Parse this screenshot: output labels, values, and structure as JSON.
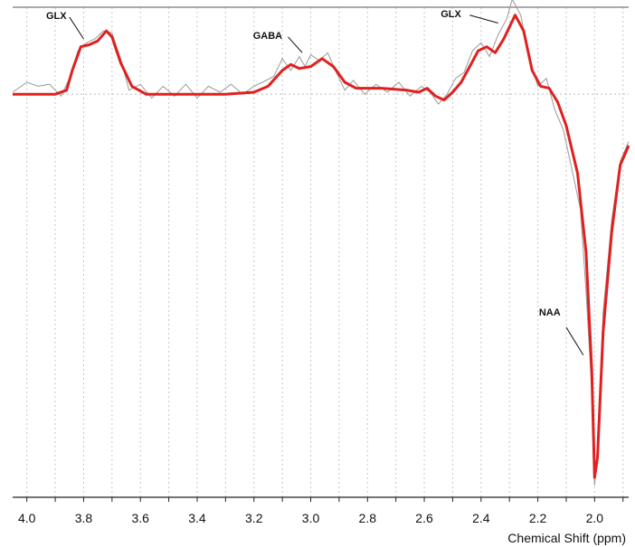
{
  "chart_data": {
    "type": "line",
    "title": "",
    "xlabel": "Chemical Shift (ppm)",
    "ylabel": "",
    "x_reversed": true,
    "xlim": [
      4.05,
      1.88
    ],
    "ylim": [
      -10.2,
      2.2
    ],
    "ticks": [
      4.0,
      3.8,
      3.6,
      3.4,
      3.2,
      3.0,
      2.8,
      2.6,
      2.4,
      2.2,
      2.0
    ],
    "tick_labels": [
      "4.0",
      "3.8",
      "3.6",
      "3.4",
      "3.2",
      "3.0",
      "2.8",
      "2.6",
      "2.4",
      "2.2",
      "2.0"
    ],
    "grid": true,
    "series": [
      {
        "role": "fit",
        "color": "#e02020",
        "points": [
          [
            4.05,
            0.0
          ],
          [
            3.9,
            0.0
          ],
          [
            3.86,
            0.1
          ],
          [
            3.84,
            0.6
          ],
          [
            3.81,
            1.2
          ],
          [
            3.78,
            1.25
          ],
          [
            3.75,
            1.35
          ],
          [
            3.72,
            1.6
          ],
          [
            3.7,
            1.45
          ],
          [
            3.67,
            0.8
          ],
          [
            3.63,
            0.2
          ],
          [
            3.58,
            0.0
          ],
          [
            3.45,
            0.0
          ],
          [
            3.3,
            0.0
          ],
          [
            3.2,
            0.05
          ],
          [
            3.15,
            0.2
          ],
          [
            3.1,
            0.6
          ],
          [
            3.07,
            0.75
          ],
          [
            3.04,
            0.65
          ],
          [
            3.0,
            0.7
          ],
          [
            2.96,
            0.9
          ],
          [
            2.92,
            0.7
          ],
          [
            2.88,
            0.3
          ],
          [
            2.84,
            0.15
          ],
          [
            2.75,
            0.15
          ],
          [
            2.66,
            0.1
          ],
          [
            2.62,
            0.05
          ],
          [
            2.59,
            0.15
          ],
          [
            2.56,
            -0.05
          ],
          [
            2.53,
            -0.15
          ],
          [
            2.5,
            0.05
          ],
          [
            2.47,
            0.3
          ],
          [
            2.44,
            0.7
          ],
          [
            2.41,
            1.1
          ],
          [
            2.38,
            1.2
          ],
          [
            2.35,
            1.05
          ],
          [
            2.32,
            1.4
          ],
          [
            2.28,
            2.0
          ],
          [
            2.25,
            1.6
          ],
          [
            2.22,
            0.6
          ],
          [
            2.19,
            0.2
          ],
          [
            2.16,
            0.15
          ],
          [
            2.13,
            -0.2
          ],
          [
            2.1,
            -0.8
          ],
          [
            2.06,
            -2.0
          ],
          [
            2.03,
            -4.0
          ],
          [
            2.01,
            -7.0
          ],
          [
            2.0,
            -9.7
          ],
          [
            1.99,
            -9.2
          ],
          [
            1.97,
            -6.0
          ],
          [
            1.94,
            -3.5
          ],
          [
            1.91,
            -1.8
          ],
          [
            1.88,
            -1.3
          ]
        ]
      },
      {
        "role": "raw",
        "color": "#999999",
        "points": [
          [
            4.05,
            0.05
          ],
          [
            4.0,
            0.3
          ],
          [
            3.96,
            0.2
          ],
          [
            3.92,
            0.25
          ],
          [
            3.88,
            -0.05
          ],
          [
            3.85,
            0.4
          ],
          [
            3.82,
            1.1
          ],
          [
            3.79,
            1.3
          ],
          [
            3.76,
            1.4
          ],
          [
            3.73,
            1.6
          ],
          [
            3.7,
            1.55
          ],
          [
            3.67,
            0.9
          ],
          [
            3.64,
            0.1
          ],
          [
            3.6,
            0.25
          ],
          [
            3.56,
            -0.1
          ],
          [
            3.52,
            0.2
          ],
          [
            3.48,
            -0.05
          ],
          [
            3.44,
            0.25
          ],
          [
            3.4,
            -0.1
          ],
          [
            3.36,
            0.2
          ],
          [
            3.32,
            0.05
          ],
          [
            3.28,
            0.25
          ],
          [
            3.24,
            0.0
          ],
          [
            3.2,
            0.2
          ],
          [
            3.17,
            0.3
          ],
          [
            3.13,
            0.45
          ],
          [
            3.1,
            0.9
          ],
          [
            3.07,
            0.6
          ],
          [
            3.04,
            0.95
          ],
          [
            3.02,
            0.7
          ],
          [
            3.0,
            1.0
          ],
          [
            2.97,
            0.85
          ],
          [
            2.94,
            1.05
          ],
          [
            2.91,
            0.55
          ],
          [
            2.88,
            0.1
          ],
          [
            2.85,
            0.35
          ],
          [
            2.81,
            0.0
          ],
          [
            2.77,
            0.25
          ],
          [
            2.73,
            0.05
          ],
          [
            2.69,
            0.3
          ],
          [
            2.65,
            -0.05
          ],
          [
            2.61,
            0.2
          ],
          [
            2.58,
            0.05
          ],
          [
            2.55,
            -0.25
          ],
          [
            2.52,
            0.0
          ],
          [
            2.49,
            0.4
          ],
          [
            2.46,
            0.55
          ],
          [
            2.43,
            1.1
          ],
          [
            2.4,
            1.3
          ],
          [
            2.37,
            0.95
          ],
          [
            2.34,
            1.5
          ],
          [
            2.31,
            1.9
          ],
          [
            2.29,
            2.4
          ],
          [
            2.26,
            2.0
          ],
          [
            2.23,
            0.9
          ],
          [
            2.2,
            0.2
          ],
          [
            2.17,
            0.4
          ],
          [
            2.14,
            -0.4
          ],
          [
            2.11,
            -0.9
          ],
          [
            2.08,
            -1.9
          ],
          [
            2.05,
            -2.9
          ],
          [
            2.03,
            -5.0
          ],
          [
            2.01,
            -7.5
          ],
          [
            2.0,
            -9.9
          ],
          [
            1.99,
            -9.0
          ],
          [
            1.97,
            -5.5
          ],
          [
            1.94,
            -3.2
          ],
          [
            1.91,
            -1.7
          ],
          [
            1.88,
            -1.2
          ]
        ]
      }
    ],
    "annotations": [
      {
        "text": "GLX",
        "x": 3.86,
        "y": 1.9,
        "lx0": 3.85,
        "ly0": 1.95,
        "lx1": 3.8,
        "ly1": 1.4
      },
      {
        "text": "GABA",
        "x": 3.1,
        "y": 1.4,
        "lx0": 3.08,
        "ly0": 1.45,
        "lx1": 3.03,
        "ly1": 1.05
      },
      {
        "text": "GLX",
        "x": 2.47,
        "y": 1.95,
        "lx0": 2.44,
        "ly0": 2.0,
        "lx1": 2.34,
        "ly1": 1.8
      },
      {
        "text": "NAA",
        "x": 2.12,
        "y": -5.6,
        "lx0": 2.1,
        "ly0": -5.9,
        "lx1": 2.04,
        "ly1": -6.6
      }
    ]
  }
}
